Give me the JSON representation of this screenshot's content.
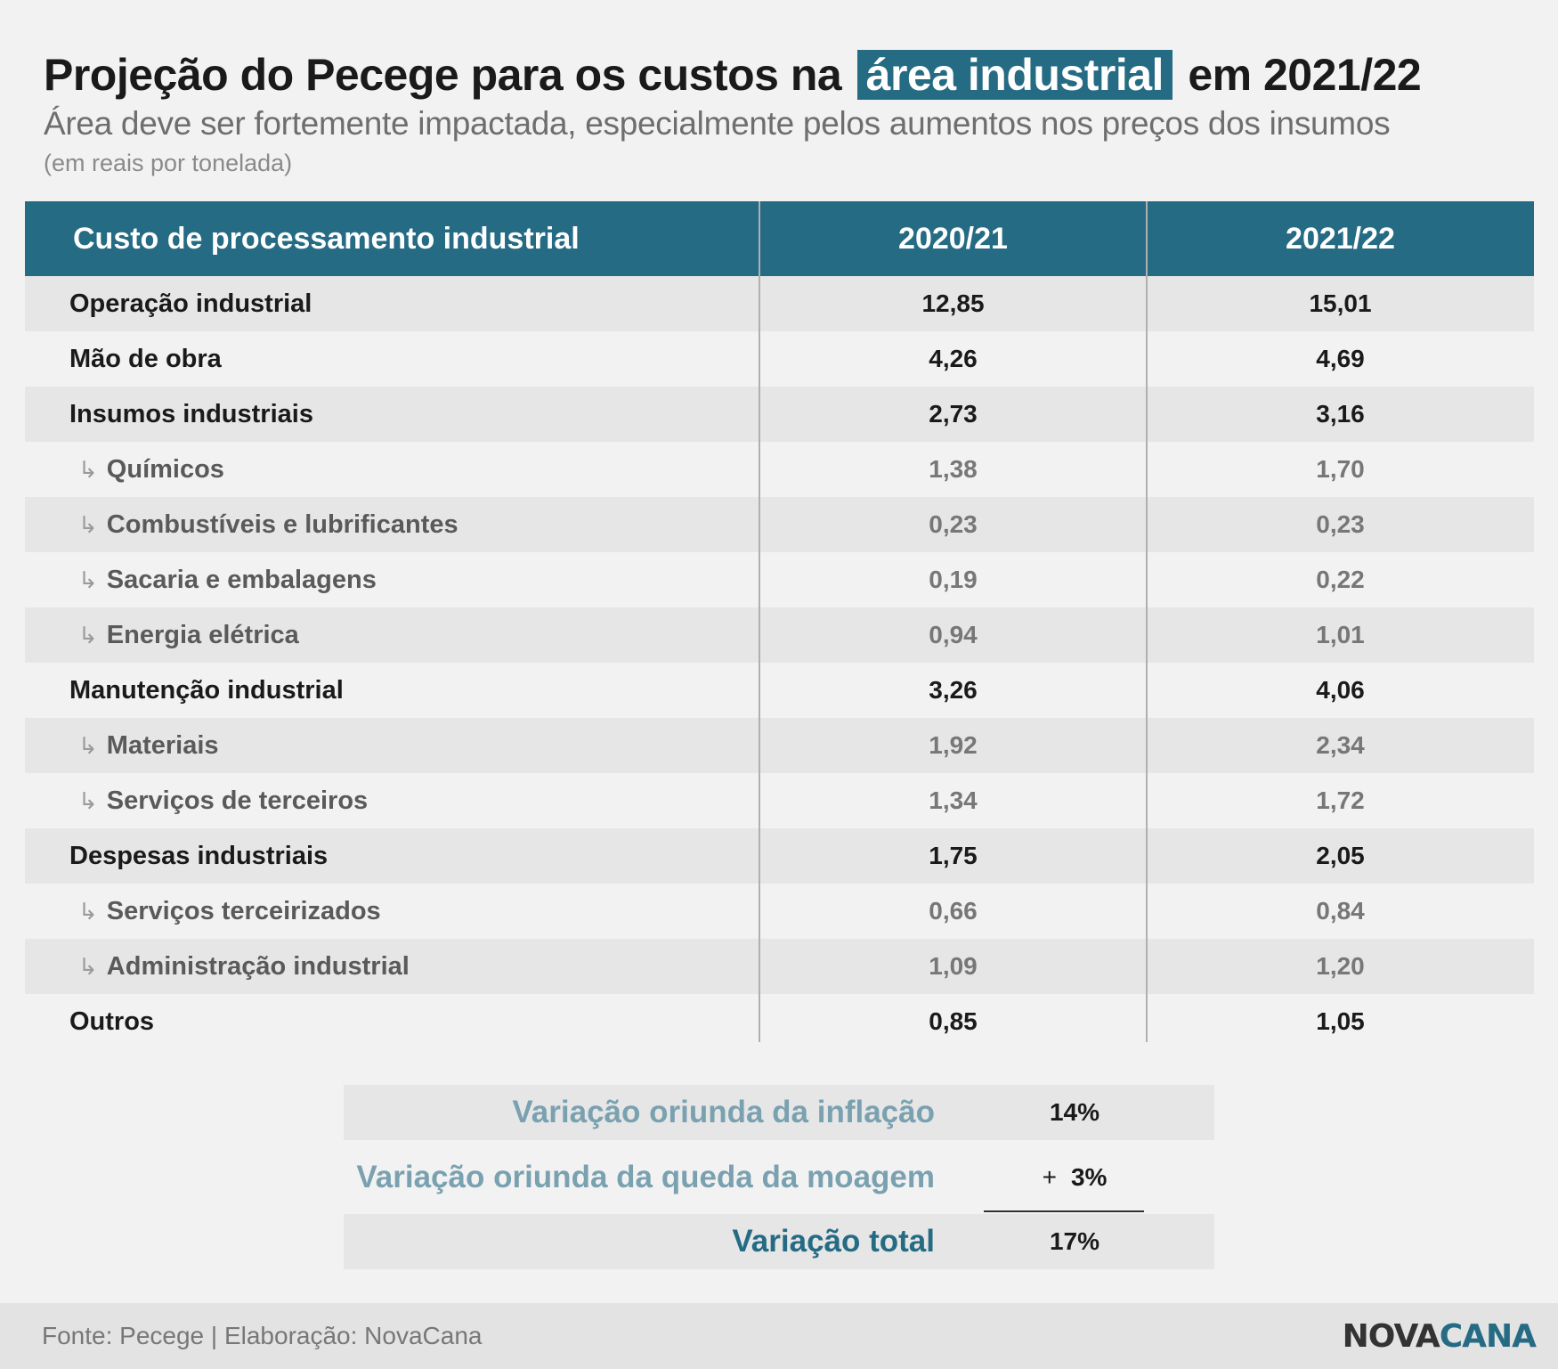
{
  "header": {
    "title_part1": "Projeção do Pecege para os custos na",
    "title_highlight": "área industrial",
    "title_part2": "em 2021/22",
    "subtitle": "Área deve ser fortemente impactada, especialmente pelos aumentos nos preços dos insumos",
    "unit_note": "(em reais por tonelada)"
  },
  "colors": {
    "accent": "#256b84",
    "summary_label_light": "#7aa1b0",
    "row_odd": "#e6e6e6",
    "row_even": "#f2f2f2"
  },
  "chart_data": {
    "type": "table",
    "columns": [
      "Custo de processamento industrial",
      "2020/21",
      "2021/22"
    ],
    "rows": [
      {
        "label": "Operação industrial",
        "v1": "12,85",
        "v2": "15,01",
        "sub": false
      },
      {
        "label": "Mão de obra",
        "v1": "4,26",
        "v2": "4,69",
        "sub": false
      },
      {
        "label": "Insumos industriais",
        "v1": "2,73",
        "v2": "3,16",
        "sub": false
      },
      {
        "label": "Químicos",
        "v1": "1,38",
        "v2": "1,70",
        "sub": true
      },
      {
        "label": "Combustíveis e lubrificantes",
        "v1": "0,23",
        "v2": "0,23",
        "sub": true
      },
      {
        "label": "Sacaria e embalagens",
        "v1": "0,19",
        "v2": "0,22",
        "sub": true
      },
      {
        "label": "Energia elétrica",
        "v1": "0,94",
        "v2": "1,01",
        "sub": true
      },
      {
        "label": "Manutenção industrial",
        "v1": "3,26",
        "v2": "4,06",
        "sub": false
      },
      {
        "label": "Materiais",
        "v1": "1,92",
        "v2": "2,34",
        "sub": true
      },
      {
        "label": "Serviços de terceiros",
        "v1": "1,34",
        "v2": "1,72",
        "sub": true
      },
      {
        "label": "Despesas industriais",
        "v1": "1,75",
        "v2": "2,05",
        "sub": false
      },
      {
        "label": "Serviços terceirizados",
        "v1": "0,66",
        "v2": "0,84",
        "sub": true
      },
      {
        "label": "Administração industrial",
        "v1": "1,09",
        "v2": "1,20",
        "sub": true
      },
      {
        "label": "Outros",
        "v1": "0,85",
        "v2": "1,05",
        "sub": false
      }
    ],
    "summary": [
      {
        "label": "Variação oriunda da inflação",
        "value": "14%"
      },
      {
        "label": "Variação oriunda da queda da moagem",
        "value": "3%",
        "prefix": "+"
      },
      {
        "label": "Variação total",
        "value": "17%"
      }
    ]
  },
  "footer": {
    "source": "Fonte: Pecege | Elaboração: NovaCana",
    "logo_part1": "NOVA",
    "logo_part2": "CANA"
  }
}
